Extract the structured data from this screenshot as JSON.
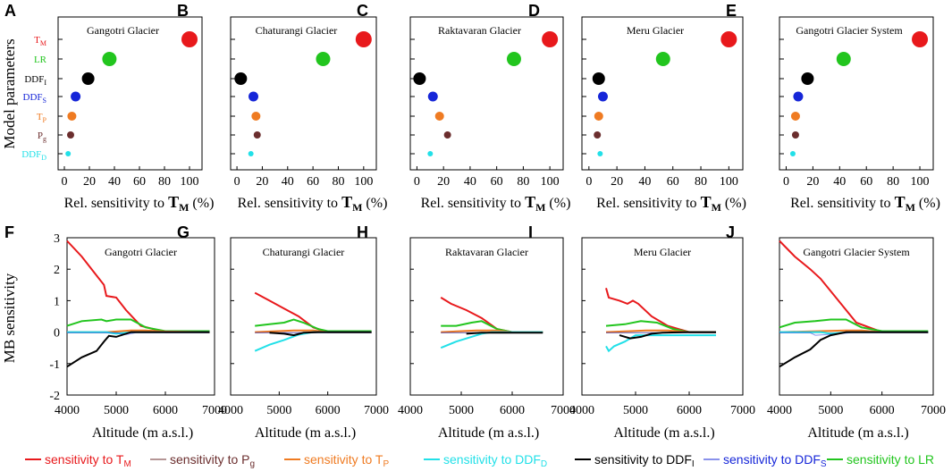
{
  "colors": {
    "TM": "#e8191c",
    "Pg": "#6b2e2e",
    "TP": "#ef7b22",
    "DDFD": "#22e0e8",
    "DDFI": "#000000",
    "DDFS": "#1626d8",
    "LR": "#22c51e"
  },
  "y_axis_label_top": "Model parameters",
  "y_axis_label_bottom": "MB sensitivity",
  "params": [
    {
      "key": "TM",
      "base": "T",
      "sub": "M"
    },
    {
      "key": "LR",
      "base": "LR",
      "sub": ""
    },
    {
      "key": "DDFI",
      "base": "DDF",
      "sub": "I"
    },
    {
      "key": "DDFS",
      "base": "DDF",
      "sub": "S"
    },
    {
      "key": "TP",
      "base": "T",
      "sub": "P"
    },
    {
      "key": "Pg",
      "base": "P",
      "sub": "g"
    },
    {
      "key": "DDFD",
      "base": "DDF",
      "sub": "D"
    }
  ],
  "xlabel_top": {
    "text": "Rel. sensitivity to ",
    "bold": "T",
    "sub": "M",
    "suffix": " (%)"
  },
  "xlabel_bottom": "Altitude (m a.s.l.)",
  "legend": [
    {
      "key": "TM",
      "text": "sensitivity to T",
      "sub": "M"
    },
    {
      "key": "Pg",
      "text": "sensitivity to P",
      "sub": "g"
    },
    {
      "key": "TP",
      "text": "sensitivity to T",
      "sub": "P"
    },
    {
      "key": "DDFD",
      "text": "sensitivity to DDF",
      "sub": "D"
    },
    {
      "key": "DDFI",
      "text": "sensitivity to DDF",
      "sub": "I"
    },
    {
      "key": "DDFS",
      "text": "sensitivity to DDF",
      "sub": "S"
    },
    {
      "key": "LR",
      "text": "sensitivity to LR",
      "sub": ""
    }
  ],
  "chart_data": [
    {
      "panel": "A",
      "type": "scatter",
      "title": "Gangotri Glacier",
      "xlim": [
        -5,
        110
      ],
      "xticks": [
        0,
        20,
        40,
        60,
        80,
        100
      ],
      "x": {
        "TM": 100,
        "LR": 36,
        "DDFI": 19,
        "DDFS": 9,
        "TP": 6,
        "Pg": 5,
        "DDFD": 3
      }
    },
    {
      "panel": "B",
      "type": "scatter",
      "title": "Chaturangi Glacier",
      "xlim": [
        -5,
        110
      ],
      "xticks": [
        0,
        20,
        40,
        60,
        80,
        100
      ],
      "x": {
        "TM": 100,
        "LR": 68,
        "DDFI": 3,
        "DDFS": 13,
        "TP": 15,
        "Pg": 16,
        "DDFD": 11
      }
    },
    {
      "panel": "C",
      "type": "scatter",
      "title": "Raktavaran Glacier",
      "xlim": [
        -5,
        110
      ],
      "xticks": [
        0,
        20,
        40,
        60,
        80,
        100
      ],
      "x": {
        "TM": 100,
        "LR": 73,
        "DDFI": 2,
        "DDFS": 12,
        "TP": 17,
        "Pg": 23,
        "DDFD": 10
      }
    },
    {
      "panel": "D",
      "type": "scatter",
      "title": "Meru Glacier",
      "xlim": [
        -5,
        110
      ],
      "xticks": [
        0,
        20,
        40,
        60,
        80,
        100
      ],
      "x": {
        "TM": 100,
        "LR": 53,
        "DDFI": 7,
        "DDFS": 10,
        "TP": 7,
        "Pg": 6,
        "DDFD": 8
      }
    },
    {
      "panel": "E",
      "type": "scatter",
      "title": "Gangotri Glacier System",
      "xlim": [
        -5,
        110
      ],
      "xticks": [
        0,
        20,
        40,
        60,
        80,
        100
      ],
      "x": {
        "TM": 100,
        "LR": 43,
        "DDFI": 16,
        "DDFS": 9,
        "TP": 7,
        "Pg": 7,
        "DDFD": 5
      }
    },
    {
      "panel": "F",
      "type": "line",
      "title": "Gangotri Glacier",
      "xlim": [
        4000,
        7000
      ],
      "ylim": [
        -2,
        3
      ],
      "xticks": [
        4000,
        5000,
        6000,
        7000
      ],
      "yticks": [
        -2,
        -1,
        0,
        1,
        2,
        3
      ],
      "series": [
        {
          "key": "TM",
          "x": [
            4000,
            4300,
            4600,
            4750,
            4800,
            5000,
            5200,
            5500,
            6000,
            6900
          ],
          "y": [
            2.9,
            2.4,
            1.8,
            1.5,
            1.15,
            1.1,
            0.7,
            0.2,
            0,
            0
          ]
        },
        {
          "key": "LR",
          "x": [
            4000,
            4300,
            4700,
            4800,
            5000,
            5300,
            5600,
            6000,
            6900
          ],
          "y": [
            0.2,
            0.35,
            0.4,
            0.35,
            0.4,
            0.4,
            0.15,
            0.03,
            0.03
          ]
        },
        {
          "key": "TP",
          "x": [
            4000,
            4800,
            5300,
            5600,
            6000,
            6900
          ],
          "y": [
            0,
            0,
            0.05,
            0.05,
            0.02,
            0
          ]
        },
        {
          "key": "Pg",
          "x": [
            4000,
            6900
          ],
          "y": [
            -0.02,
            -0.02
          ]
        },
        {
          "key": "DDFD",
          "x": [
            4000,
            4800,
            5000,
            5200,
            5400,
            6900
          ],
          "y": [
            0,
            0,
            -0.05,
            -0.02,
            0,
            0
          ]
        },
        {
          "key": "DDFS",
          "x": [
            4000,
            5000,
            5200,
            5400,
            6900
          ],
          "y": [
            -0.02,
            -0.02,
            -0.08,
            -0.02,
            -0.02
          ]
        },
        {
          "key": "DDFI",
          "x": [
            4000,
            4300,
            4600,
            4750,
            4850,
            5000,
            5300,
            5600,
            6000,
            6900
          ],
          "y": [
            -1.1,
            -0.8,
            -0.6,
            -0.3,
            -0.12,
            -0.15,
            0,
            0,
            0,
            0
          ]
        }
      ]
    },
    {
      "panel": "G",
      "type": "line",
      "title": "Chaturangi Glacier",
      "xlim": [
        4000,
        7000
      ],
      "ylim": [
        -2,
        3
      ],
      "xticks": [
        4000,
        5000,
        6000,
        7000
      ],
      "yticks": [],
      "series": [
        {
          "key": "TM",
          "x": [
            4500,
            4800,
            5100,
            5400,
            5700,
            6000,
            6900
          ],
          "y": [
            1.25,
            1.0,
            0.75,
            0.5,
            0.15,
            0,
            0
          ]
        },
        {
          "key": "LR",
          "x": [
            4500,
            4800,
            5100,
            5300,
            5500,
            5800,
            6000,
            6900
          ],
          "y": [
            0.2,
            0.25,
            0.3,
            0.4,
            0.3,
            0.1,
            0.03,
            0.03
          ]
        },
        {
          "key": "TP",
          "x": [
            4500,
            5300,
            5700,
            6000,
            6900
          ],
          "y": [
            0,
            0.05,
            0.05,
            0,
            0
          ]
        },
        {
          "key": "Pg",
          "x": [
            4500,
            6900
          ],
          "y": [
            -0.02,
            -0.02
          ]
        },
        {
          "key": "DDFD",
          "x": [
            4500,
            4800,
            5100,
            5400,
            5700,
            6900
          ],
          "y": [
            -0.6,
            -0.4,
            -0.25,
            -0.08,
            0,
            0
          ]
        },
        {
          "key": "DDFS",
          "x": [
            4500,
            6900
          ],
          "y": [
            -0.02,
            -0.02
          ]
        },
        {
          "key": "DDFI",
          "x": [
            4800,
            5100,
            5300,
            5500,
            5800,
            6900
          ],
          "y": [
            -0.02,
            -0.05,
            -0.1,
            -0.02,
            0,
            0
          ]
        }
      ]
    },
    {
      "panel": "H",
      "type": "line",
      "title": "Raktavaran Glacier",
      "xlim": [
        4000,
        7000
      ],
      "ylim": [
        -2,
        3
      ],
      "xticks": [
        4000,
        5000,
        6000,
        7000
      ],
      "yticks": [],
      "series": [
        {
          "key": "TM",
          "x": [
            4600,
            4800,
            5100,
            5400,
            5700,
            6000,
            6600
          ],
          "y": [
            1.1,
            0.9,
            0.7,
            0.45,
            0.1,
            0,
            0
          ]
        },
        {
          "key": "LR",
          "x": [
            4600,
            4900,
            5200,
            5400,
            5700,
            6000,
            6600
          ],
          "y": [
            0.2,
            0.2,
            0.3,
            0.35,
            0.1,
            0,
            0
          ]
        },
        {
          "key": "TP",
          "x": [
            4600,
            5300,
            5700,
            6000,
            6600
          ],
          "y": [
            0,
            0.05,
            0.05,
            0,
            0
          ]
        },
        {
          "key": "Pg",
          "x": [
            4600,
            6600
          ],
          "y": [
            -0.02,
            -0.02
          ]
        },
        {
          "key": "DDFD",
          "x": [
            4600,
            4900,
            5200,
            5400,
            5600,
            6600
          ],
          "y": [
            -0.5,
            -0.3,
            -0.15,
            -0.05,
            0,
            0
          ]
        },
        {
          "key": "DDFS",
          "x": [
            4600,
            6600
          ],
          "y": [
            -0.02,
            -0.02
          ]
        },
        {
          "key": "DDFI",
          "x": [
            5100,
            5400,
            5700,
            6600
          ],
          "y": [
            -0.05,
            -0.02,
            -0.02,
            -0.02
          ]
        }
      ]
    },
    {
      "panel": "I",
      "type": "line",
      "title": "Meru Glacier",
      "xlim": [
        4000,
        7000
      ],
      "ylim": [
        -2,
        3
      ],
      "xticks": [
        4000,
        5000,
        6000,
        7000
      ],
      "yticks": [],
      "series": [
        {
          "key": "TM",
          "x": [
            4450,
            4500,
            4700,
            4850,
            4950,
            5050,
            5300,
            5600,
            6000,
            6500
          ],
          "y": [
            1.4,
            1.1,
            1.0,
            0.9,
            1.0,
            0.9,
            0.5,
            0.2,
            0,
            0
          ]
        },
        {
          "key": "LR",
          "x": [
            4450,
            4800,
            5100,
            5400,
            5700,
            6000,
            6500
          ],
          "y": [
            0.2,
            0.25,
            0.35,
            0.3,
            0.1,
            0,
            0
          ]
        },
        {
          "key": "TP",
          "x": [
            4450,
            5200,
            5600,
            6000,
            6500
          ],
          "y": [
            0,
            0.05,
            0.05,
            0,
            0
          ]
        },
        {
          "key": "Pg",
          "x": [
            4450,
            6500
          ],
          "y": [
            -0.02,
            -0.02
          ]
        },
        {
          "key": "DDFD",
          "x": [
            4450,
            4500,
            4600,
            4800,
            5000,
            6500
          ],
          "y": [
            -0.45,
            -0.6,
            -0.45,
            -0.3,
            -0.1,
            -0.1
          ]
        },
        {
          "key": "DDFS",
          "x": [
            4450,
            6500
          ],
          "y": [
            -0.02,
            -0.02
          ]
        },
        {
          "key": "DDFI",
          "x": [
            4700,
            4900,
            5100,
            5300,
            5500,
            6000,
            6500
          ],
          "y": [
            -0.1,
            -0.2,
            -0.15,
            -0.05,
            -0.02,
            0,
            0
          ]
        }
      ]
    },
    {
      "panel": "J",
      "type": "line",
      "title": "Gangotri Glacier System",
      "xlim": [
        4000,
        7000
      ],
      "ylim": [
        -2,
        3
      ],
      "xticks": [
        4000,
        5000,
        6000,
        7000
      ],
      "yticks": [],
      "series": [
        {
          "key": "TM",
          "x": [
            4000,
            4300,
            4600,
            4800,
            5000,
            5200,
            5500,
            6000,
            6900
          ],
          "y": [
            2.9,
            2.4,
            2.0,
            1.7,
            1.3,
            0.9,
            0.3,
            0,
            0
          ]
        },
        {
          "key": "LR",
          "x": [
            4000,
            4300,
            4700,
            5000,
            5300,
            5600,
            6000,
            6900
          ],
          "y": [
            0.15,
            0.3,
            0.35,
            0.4,
            0.4,
            0.15,
            0.03,
            0.03
          ]
        },
        {
          "key": "TP",
          "x": [
            4000,
            5300,
            5600,
            6000,
            6900
          ],
          "y": [
            0,
            0.05,
            0.05,
            0,
            0
          ]
        },
        {
          "key": "Pg",
          "x": [
            4000,
            6900
          ],
          "y": [
            -0.02,
            -0.02
          ]
        },
        {
          "key": "DDFD",
          "x": [
            4000,
            4800,
            5000,
            5200,
            5400,
            6900
          ],
          "y": [
            0,
            0,
            -0.05,
            -0.02,
            0,
            0
          ]
        },
        {
          "key": "DDFS",
          "x": [
            4000,
            4600,
            4700,
            5200,
            5400,
            6900
          ],
          "y": [
            -0.02,
            -0.02,
            -0.1,
            -0.05,
            -0.02,
            -0.02
          ]
        },
        {
          "key": "DDFI",
          "x": [
            4000,
            4300,
            4600,
            4800,
            5000,
            5300,
            5600,
            6000,
            6900
          ],
          "y": [
            -1.1,
            -0.8,
            -0.55,
            -0.25,
            -0.1,
            0,
            0,
            0,
            0
          ]
        }
      ]
    }
  ]
}
